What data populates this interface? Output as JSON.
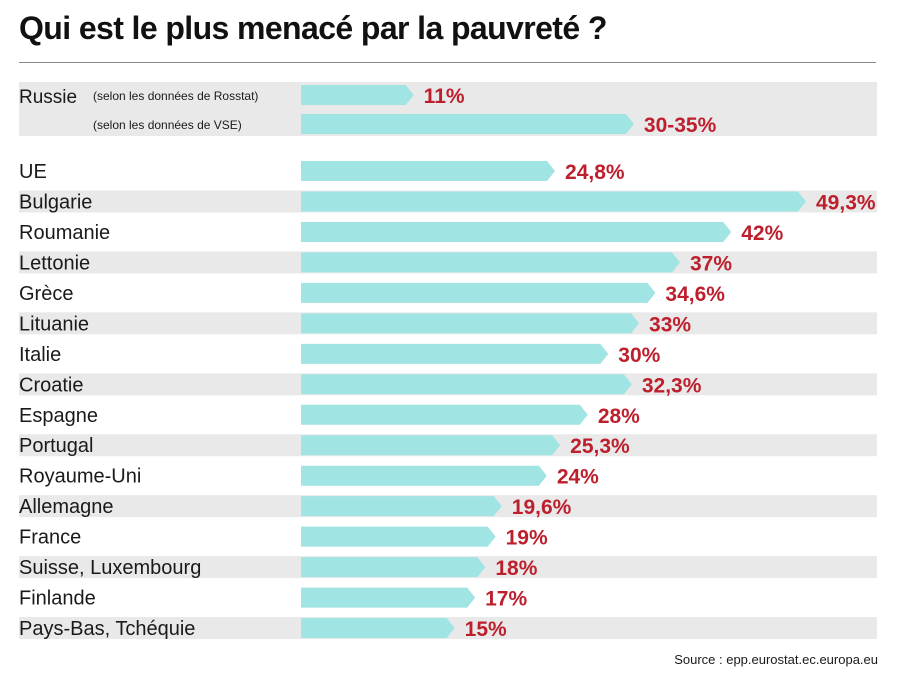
{
  "title": "Qui est le plus menacé par la pauvreté ?",
  "source": "Source : epp.eurostat.ec.europa.eu",
  "colors": {
    "bar": "#a0e4e3",
    "value": "#bd1f2d",
    "band": "#e9e9ea",
    "text": "#1a1a1a"
  },
  "chart_data": {
    "type": "bar",
    "orientation": "horizontal",
    "unit": "%",
    "russia_group": {
      "label": "Russie",
      "rows": [
        {
          "sublabel": "(selon les données de Rosstat)",
          "value": 11,
          "display": "11%"
        },
        {
          "sublabel": "(selon les données de VSE)",
          "value": 32.5,
          "value_range": [
            30,
            35
          ],
          "display": "30-35%"
        }
      ]
    },
    "categories": [
      "UE",
      "Bulgarie",
      "Roumanie",
      "Lettonie",
      "Grèce",
      "Lituanie",
      "Italie",
      "Croatie",
      "Espagne",
      "Portugal",
      "Royaume-Uni",
      "Allemagne",
      "France",
      "Suisse, Luxembourg",
      "Finlande",
      "Pays-Bas, Tchéquie"
    ],
    "values": [
      24.8,
      49.3,
      42,
      37,
      34.6,
      33,
      30,
      32.3,
      28,
      25.3,
      24,
      19.6,
      19,
      18,
      17,
      15
    ],
    "value_labels": [
      "24,8%",
      "49,3%",
      "42%",
      "37%",
      "34,6%",
      "33%",
      "30%",
      "32,3%",
      "28%",
      "25,3%",
      "24%",
      "19,6%",
      "19%",
      "18%",
      "17%",
      "15%"
    ]
  }
}
